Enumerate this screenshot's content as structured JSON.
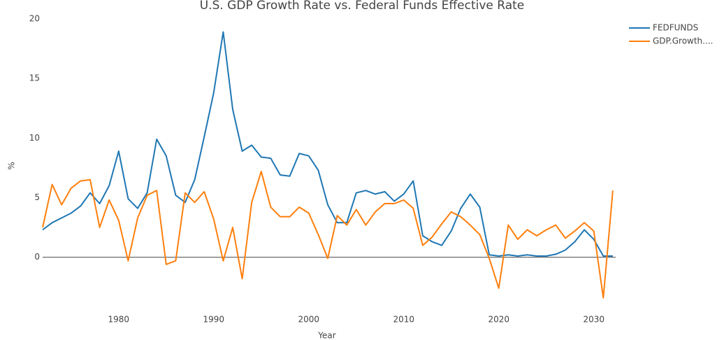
{
  "chart_data": {
    "type": "line",
    "title": "U.S. GDP Growth Rate vs. Federal Funds Effective Rate",
    "x_label": "Year",
    "y_label": "%",
    "x": [
      1972,
      1973,
      1974,
      1975,
      1976,
      1977,
      1978,
      1979,
      1980,
      1981,
      1982,
      1983,
      1984,
      1985,
      1986,
      1987,
      1988,
      1989,
      1990,
      1991,
      1992,
      1993,
      1994,
      1995,
      1996,
      1997,
      1998,
      1999,
      2000,
      2001,
      2002,
      2003,
      2004,
      2005,
      2006,
      2007,
      2008,
      2009,
      2010,
      2011,
      2012,
      2013,
      2014,
      2015,
      2016,
      2017,
      2018,
      2019,
      2020,
      2021,
      2022,
      2023,
      2024,
      2025,
      2026,
      2027,
      2028,
      2029,
      2030,
      2031,
      2032
    ],
    "series": [
      {
        "name": "FEDFUNDS",
        "color": "#1f77b4",
        "values": [
          2.3,
          2.9,
          3.3,
          3.7,
          4.3,
          5.4,
          4.5,
          6.0,
          8.9,
          4.9,
          4.1,
          5.4,
          9.9,
          8.5,
          5.2,
          4.6,
          6.5,
          10.1,
          13.8,
          18.9,
          12.4,
          8.9,
          9.4,
          8.4,
          8.3,
          6.9,
          6.8,
          8.7,
          8.5,
          7.3,
          4.4,
          2.9,
          2.9,
          5.4,
          5.6,
          5.3,
          5.5,
          4.7,
          5.3,
          6.4,
          1.8,
          1.3,
          1.0,
          2.2,
          4.1,
          5.3,
          4.2,
          0.2,
          0.1,
          0.2,
          0.1,
          0.2,
          0.1,
          0.1,
          0.25,
          0.6,
          1.3,
          2.3,
          1.5,
          0.1,
          0.1
        ]
      },
      {
        "name": "GDP.Growth....",
        "color": "#ff7f0e",
        "values": [
          2.5,
          6.1,
          4.4,
          5.8,
          6.4,
          6.5,
          2.5,
          4.8,
          3.1,
          -0.3,
          3.3,
          5.2,
          5.6,
          -0.6,
          -0.3,
          5.4,
          4.6,
          5.5,
          3.2,
          -0.3,
          2.5,
          -1.8,
          4.6,
          7.2,
          4.2,
          3.4,
          3.4,
          4.2,
          3.7,
          1.9,
          -0.1,
          3.5,
          2.7,
          4.0,
          2.7,
          3.8,
          4.5,
          4.5,
          4.8,
          4.1,
          1.0,
          1.7,
          2.8,
          3.8,
          3.4,
          2.7,
          1.9,
          -0.1,
          -2.6,
          2.7,
          1.5,
          2.3,
          1.8,
          2.3,
          2.7,
          1.6,
          2.2,
          2.9,
          2.2,
          -3.4,
          5.6
        ]
      }
    ],
    "xlim": [
      1972,
      2032.3
    ],
    "xticks": [
      1980,
      1990,
      2000,
      2010,
      2020,
      2030
    ],
    "ylim": [
      -4.3,
      20.4
    ],
    "yticks": [
      0,
      5,
      10,
      15,
      20
    ],
    "grid": false,
    "legend": "top-right"
  }
}
